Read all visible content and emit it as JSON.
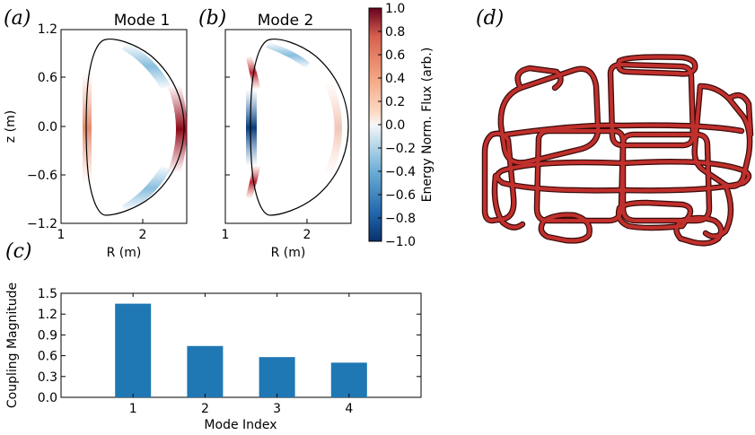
{
  "panel_labels": {
    "a": "(a)",
    "b": "(b)",
    "c": "(c)",
    "d": "(d)"
  },
  "colors": {
    "bar": "#1f77b4",
    "coil": "#c0302c",
    "coil_dark": "#3a0a0a",
    "cmap_min": "#08306b",
    "cmap_mid": "#f7f7f7",
    "cmap_max": "#67001f"
  },
  "chart_data": [
    {
      "type": "heatmap",
      "panel": "(a)",
      "title": "Mode 1",
      "xlabel": "R (m)",
      "ylabel": "z (m)",
      "xlim": [
        1,
        2.5
      ],
      "ylim": [
        -1.2,
        1.2
      ],
      "xticks": [
        "1",
        "2"
      ],
      "yticks": [
        "1.2",
        "0.6",
        "0.0",
        "−0.6",
        "−1.2"
      ]
    },
    {
      "type": "heatmap",
      "panel": "(b)",
      "title": "Mode 2",
      "xlabel": "R (m)",
      "ylabel": "",
      "xlim": [
        1,
        2.5
      ],
      "ylim": [
        -1.2,
        1.2
      ],
      "xticks": [
        "1",
        "2"
      ],
      "colorbar": {
        "label": "Energy Norm. Flux (arb.)",
        "range": [
          -1.0,
          1.0
        ],
        "ticks": [
          "1.0",
          "0.8",
          "0.6",
          "0.4",
          "0.2",
          "0.0",
          "−0.2",
          "−0.4",
          "−0.6",
          "−0.8",
          "−1.0"
        ]
      }
    },
    {
      "type": "bar",
      "panel": "(c)",
      "categories": [
        "1",
        "2",
        "3",
        "4"
      ],
      "values": [
        1.35,
        0.74,
        0.58,
        0.5
      ],
      "xlabel": "Mode Index",
      "ylabel": "Coupling Magnitude",
      "ylim": [
        0.0,
        1.5
      ],
      "yticks": [
        "1.5",
        "1.2",
        "0.9",
        "0.6",
        "0.3",
        "0.0"
      ]
    }
  ]
}
